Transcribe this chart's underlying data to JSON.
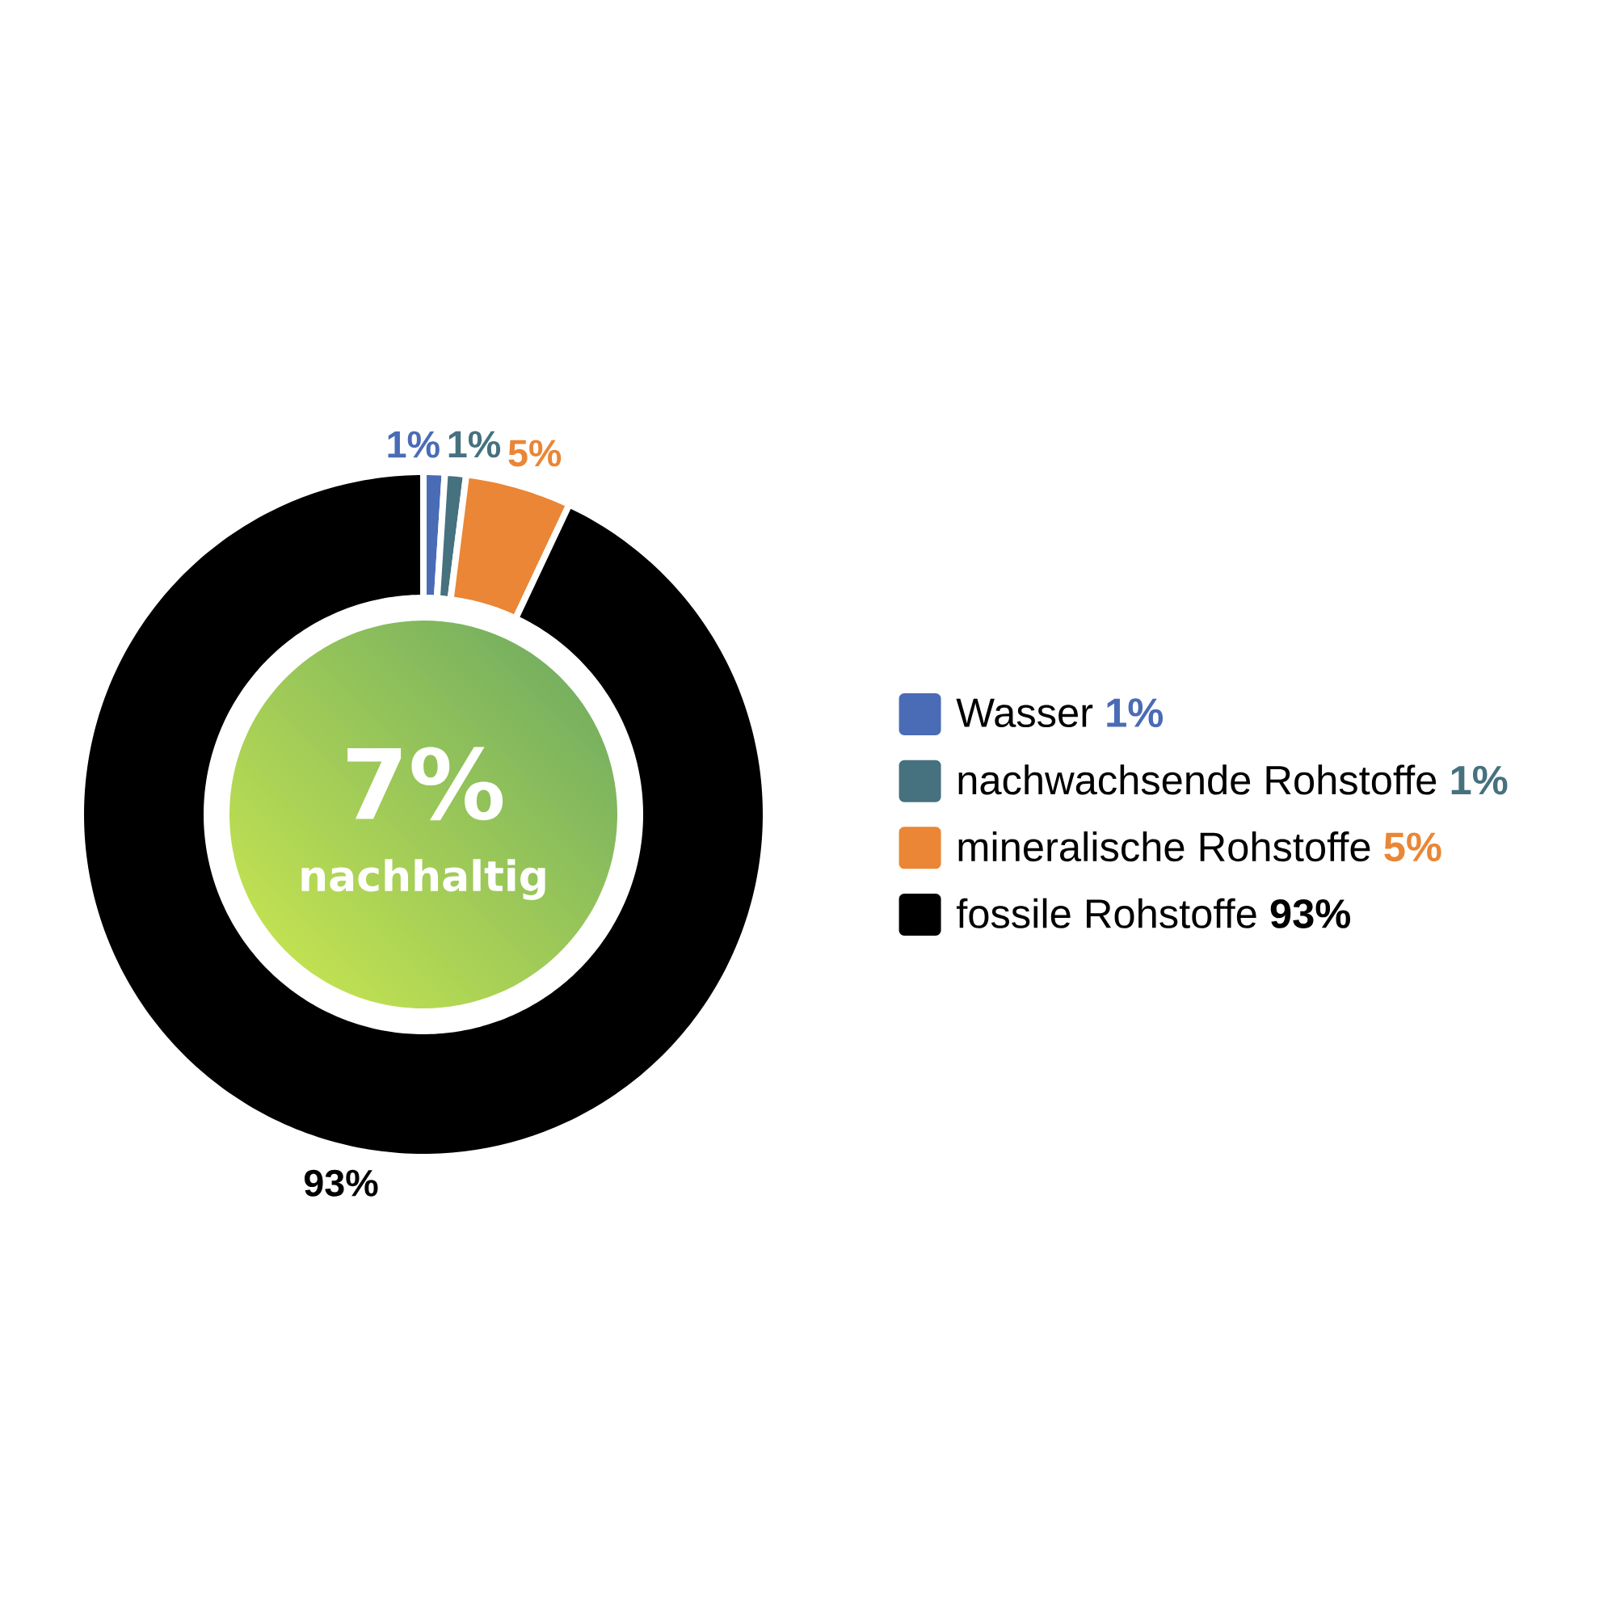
{
  "chart_data": {
    "type": "donut",
    "categories": [
      "Wasser",
      "nachwachsende Rohstoffe",
      "mineralische Rohstoffe",
      "fossile Rohstoffe"
    ],
    "values": [
      1,
      1,
      5,
      93
    ],
    "colors": [
      "#4a6cb6",
      "#46717f",
      "#ea8635",
      "#000000"
    ],
    "value_labels": [
      "1%",
      "1%",
      "5%",
      "93%"
    ],
    "legend": "right",
    "annotations": [
      "7%",
      "nachhaltig"
    ]
  }
}
